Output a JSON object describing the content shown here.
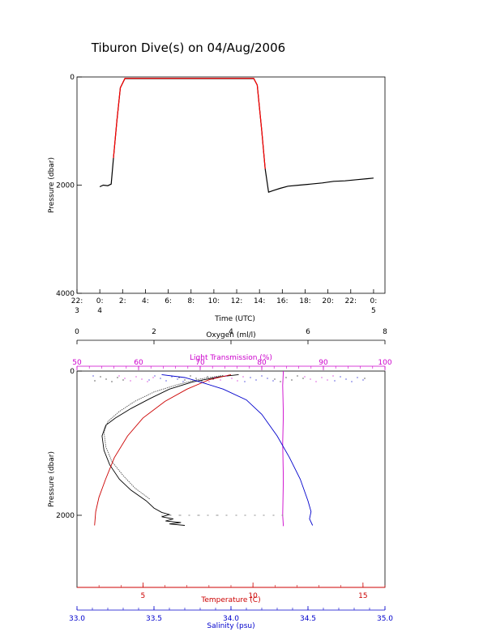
{
  "title": "Tiburon Dive(s) on 04/Aug/2006",
  "chart_data": [
    {
      "type": "line",
      "xlabel": "Time (UTC)",
      "ylabel": "Pressure (dbar)",
      "ylim": [
        4000,
        0
      ],
      "y_ticks": [
        "0",
        "2000",
        "4000"
      ],
      "x_ticks": [
        {
          "h": -2,
          "l1": "22:",
          "l2": "3"
        },
        {
          "h": 0,
          "l1": "0:",
          "l2": "4"
        },
        {
          "h": 2,
          "l1": "2:",
          "l2": ""
        },
        {
          "h": 4,
          "l1": "4:",
          "l2": ""
        },
        {
          "h": 6,
          "l1": "6:",
          "l2": ""
        },
        {
          "h": 8,
          "l1": "8:",
          "l2": ""
        },
        {
          "h": 10,
          "l1": "10:",
          "l2": ""
        },
        {
          "h": 12,
          "l1": "12:",
          "l2": ""
        },
        {
          "h": 14,
          "l1": "14:",
          "l2": ""
        },
        {
          "h": 16,
          "l1": "16:",
          "l2": ""
        },
        {
          "h": 18,
          "l1": "18:",
          "l2": ""
        },
        {
          "h": 20,
          "l1": "20:",
          "l2": ""
        },
        {
          "h": 22,
          "l1": "22:",
          "l2": ""
        },
        {
          "h": 24,
          "l1": "0:",
          "l2": "5"
        }
      ],
      "xlim": [
        -2,
        25
      ],
      "series": [
        {
          "color": "#000000",
          "x": [
            0.0,
            0.3,
            0.7,
            1.0,
            1.2,
            1.5,
            1.8,
            2.2,
            13.5,
            13.8,
            14.2,
            14.5,
            14.8,
            15.2,
            15.8,
            16.5,
            17.5,
            18.5,
            19.5,
            20.5,
            21.5,
            22.5,
            23.5,
            24.0
          ],
          "y": [
            2030,
            2000,
            2010,
            1980,
            1500,
            800,
            200,
            30,
            30,
            150,
            1000,
            1700,
            2130,
            2100,
            2060,
            2020,
            2000,
            1980,
            1960,
            1930,
            1920,
            1900,
            1880,
            1870
          ]
        },
        {
          "color": "#ff0000",
          "x": [
            1.2,
            1.5,
            1.8,
            2.2,
            13.5,
            13.8,
            14.2,
            14.5
          ],
          "y": [
            1500,
            800,
            200,
            25,
            25,
            150,
            1000,
            1700
          ]
        }
      ]
    },
    {
      "type": "line",
      "ylabel": "Pressure (dbar)",
      "ylim": [
        3000,
        0
      ],
      "y_ticks": [
        "0",
        "2000"
      ],
      "axes": [
        {
          "label": "Oxygen (ml/l)",
          "color": "#000000",
          "range": [
            0,
            8
          ],
          "ticks": [
            "0",
            "2",
            "4",
            "6",
            "8"
          ],
          "position": "top-outer"
        },
        {
          "label": "Light Transmission (%)",
          "color": "#cc00cc",
          "range": [
            50,
            100
          ],
          "ticks": [
            "50",
            "60",
            "70",
            "80",
            "90",
            "100"
          ],
          "position": "top-inner"
        },
        {
          "label": "Temperature (C)",
          "color": "#cc0000",
          "range": [
            2,
            16
          ],
          "ticks": [
            "5",
            "10",
            "15"
          ],
          "position": "bottom-inner"
        },
        {
          "label": "Salinity (psu)",
          "color": "#0000cc",
          "range": [
            33.0,
            35.0
          ],
          "ticks": [
            "33.0",
            "33.5",
            "34.0",
            "34.5",
            "35.0"
          ],
          "position": "bottom-outer"
        }
      ],
      "series": [
        {
          "axis": 0,
          "color": "#000000",
          "x": [
            4.2,
            3.7,
            3.0,
            2.4,
            1.9,
            1.4,
            1.0,
            0.75,
            0.65,
            0.7,
            0.85,
            1.1,
            1.4,
            1.8,
            2.0,
            2.2,
            2.4,
            2.2,
            2.5,
            2.3,
            2.7,
            2.4,
            2.8
          ],
          "y": [
            50,
            80,
            150,
            250,
            380,
            520,
            650,
            750,
            900,
            1100,
            1300,
            1500,
            1650,
            1800,
            1900,
            1960,
            1990,
            2020,
            2050,
            2080,
            2100,
            2120,
            2140
          ]
        },
        {
          "axis": 0,
          "color": "#555555",
          "x": [
            3.8,
            3.2,
            2.6,
            2.0,
            1.5,
            1.1,
            0.8,
            0.7,
            0.75,
            0.9,
            1.2,
            1.5,
            1.9
          ],
          "y": [
            60,
            110,
            190,
            290,
            420,
            560,
            700,
            850,
            1050,
            1250,
            1450,
            1620,
            1780
          ]
        },
        {
          "axis": 1,
          "color": "#cc00cc",
          "x": [
            83.5,
            83.4,
            83.5,
            83.4,
            83.5,
            83.4,
            83.5
          ],
          "y": [
            0,
            200,
            600,
            1000,
            1500,
            2000,
            2150
          ]
        },
        {
          "axis": 2,
          "color": "#cc0000",
          "x": [
            9.0,
            8.0,
            7.0,
            6.0,
            5.0,
            4.3,
            3.7,
            3.3,
            3.0,
            2.85,
            2.8
          ],
          "y": [
            50,
            120,
            250,
            420,
            650,
            900,
            1200,
            1500,
            1750,
            1950,
            2140
          ]
        },
        {
          "axis": 3,
          "color": "#0000cc",
          "x": [
            33.55,
            33.7,
            33.8,
            33.95,
            34.1,
            34.2,
            34.3,
            34.38,
            34.45,
            34.5,
            34.52,
            34.51,
            34.53
          ],
          "y": [
            50,
            90,
            150,
            250,
            400,
            600,
            900,
            1200,
            1500,
            1800,
            1950,
            2050,
            2140
          ]
        }
      ]
    }
  ]
}
